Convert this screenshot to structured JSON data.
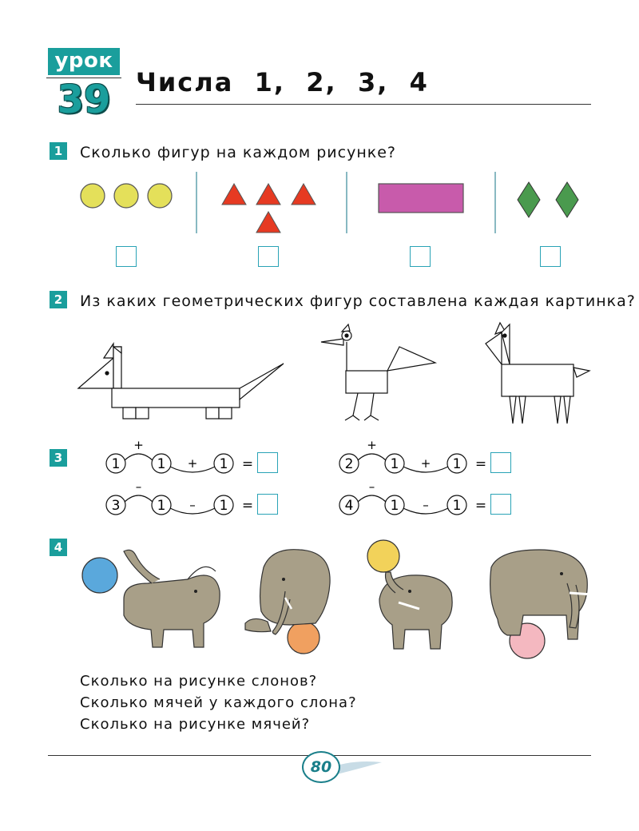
{
  "header": {
    "lesson_label": "урок",
    "lesson_number": "39",
    "title": "Числа  1,  2,  3,  4"
  },
  "task1": {
    "number": "1",
    "text": "Сколько  фигур  на  каждом  рисунке?",
    "colors": {
      "circle": "#e4e05a",
      "triangle": "#e63a22",
      "rectangle": "#c85bab",
      "rhombus": "#4a9a4e"
    }
  },
  "task2": {
    "number": "2",
    "text": "Из  каких  геометрических  фигур  составлена  каждая  картинка?"
  },
  "task3": {
    "number": "3",
    "rows": [
      {
        "a": "1",
        "op1": "+",
        "b": "1",
        "op2": "+",
        "c": "1",
        "eq": "="
      },
      {
        "a": "3",
        "op1": "–",
        "b": "1",
        "op2": "–",
        "c": "1",
        "eq": "="
      },
      {
        "a": "2",
        "op1": "+",
        "b": "1",
        "op2": "+",
        "c": "1",
        "eq": "="
      },
      {
        "a": "4",
        "op1": "–",
        "b": "1",
        "op2": "–",
        "c": "1",
        "eq": "="
      }
    ]
  },
  "task4": {
    "number": "4",
    "questions": [
      "Сколько  на  рисунке  слонов?",
      "Сколько  мячей  у  каждого  слона?",
      "Сколько  на  рисунке  мячей?"
    ],
    "ball_colors": [
      "#5aa8dc",
      "#f0a060",
      "#f2d25a",
      "#f4b8c0"
    ],
    "elephant_color": "#a89f88"
  },
  "footer": {
    "page_number": "80"
  }
}
